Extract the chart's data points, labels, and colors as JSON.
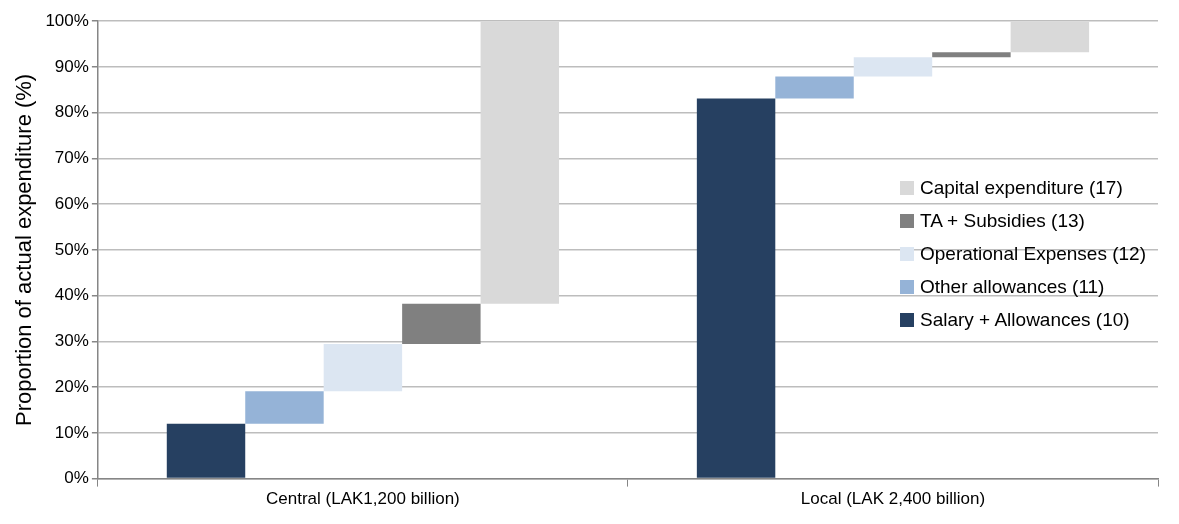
{
  "chart_data": {
    "type": "bar",
    "ylabel": "Proportion of actual expenditure (%)",
    "categories": [
      "Central (LAK1,200 billion)",
      "Local (LAK 2,400 billion)"
    ],
    "series": [
      {
        "name": "Salary + Allowances (10)",
        "color": "#264061",
        "base": [
          0,
          0
        ],
        "values": [
          12,
          83.1
        ]
      },
      {
        "name": "Other allowances (11)",
        "color": "#95b3d7",
        "base": [
          12,
          83.1
        ],
        "values": [
          7.1,
          4.8
        ]
      },
      {
        "name": "Operational Expenses (12)",
        "color": "#dce6f2",
        "base": [
          19.1,
          87.9
        ],
        "values": [
          10.3,
          4.2
        ]
      },
      {
        "name": "TA + Subsidies (13)",
        "color": "#808080",
        "base": [
          29.4,
          92.1
        ],
        "values": [
          8.8,
          1.1
        ]
      },
      {
        "name": "Capital expenditure (17)",
        "color": "#d9d9d9",
        "base": [
          38.2,
          93.2
        ],
        "values": [
          61.8,
          6.8
        ]
      }
    ],
    "ylim": [
      0,
      100
    ],
    "yticks": [
      {
        "value": 0,
        "label": "0%"
      },
      {
        "value": 10,
        "label": "10%"
      },
      {
        "value": 20,
        "label": "20%"
      },
      {
        "value": 30,
        "label": "30%"
      },
      {
        "value": 40,
        "label": "40%"
      },
      {
        "value": 50,
        "label": "50%"
      },
      {
        "value": 60,
        "label": "60%"
      },
      {
        "value": 70,
        "label": "70%"
      },
      {
        "value": 80,
        "label": "80%"
      },
      {
        "value": 90,
        "label": "90%"
      },
      {
        "value": 100,
        "label": "100%"
      }
    ],
    "grid": "y",
    "legend": "right"
  }
}
